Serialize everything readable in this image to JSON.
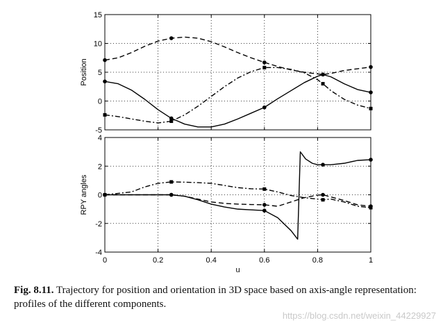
{
  "chart_data": [
    {
      "type": "line",
      "id": "position",
      "title": "",
      "xlabel": "",
      "ylabel": "Position",
      "xlim": [
        0,
        1
      ],
      "ylim": [
        -5,
        15
      ],
      "xticks": [
        0,
        0.2,
        0.4,
        0.6,
        0.8,
        1
      ],
      "yticks": [
        -5,
        0,
        5,
        10,
        15
      ],
      "grid": true,
      "series": [
        {
          "name": "solid",
          "style": "solid",
          "x": [
            0,
            0.05,
            0.1,
            0.15,
            0.2,
            0.25,
            0.3,
            0.35,
            0.4,
            0.45,
            0.5,
            0.55,
            0.6,
            0.65,
            0.7,
            0.75,
            0.8,
            0.82,
            0.85,
            0.9,
            0.95,
            1
          ],
          "y": [
            3.4,
            3.0,
            1.9,
            0.3,
            -1.5,
            -3.0,
            -4.0,
            -4.5,
            -4.5,
            -4.0,
            -3.1,
            -2.1,
            -1.1,
            0.4,
            1.8,
            3.2,
            4.3,
            4.6,
            4.2,
            3.0,
            2.0,
            1.5
          ],
          "markers": [
            {
              "x": 0,
              "y": 3.4,
              "shape": "circle"
            },
            {
              "x": 0.25,
              "y": -3.0,
              "shape": "circle"
            },
            {
              "x": 0.6,
              "y": -1.1,
              "shape": "circle"
            },
            {
              "x": 0.82,
              "y": 4.6,
              "shape": "circle"
            },
            {
              "x": 1,
              "y": 1.5,
              "shape": "circle"
            }
          ]
        },
        {
          "name": "dashed",
          "style": "dashed",
          "x": [
            0,
            0.05,
            0.1,
            0.15,
            0.2,
            0.25,
            0.3,
            0.35,
            0.4,
            0.45,
            0.5,
            0.55,
            0.6,
            0.65,
            0.7,
            0.75,
            0.8,
            0.82,
            0.85,
            0.9,
            0.95,
            1
          ],
          "y": [
            7.1,
            7.5,
            8.4,
            9.5,
            10.4,
            10.9,
            11.1,
            10.9,
            10.3,
            9.4,
            8.4,
            7.5,
            6.7,
            6.0,
            5.4,
            5.0,
            4.7,
            4.6,
            4.8,
            5.3,
            5.6,
            5.9
          ],
          "markers": [
            {
              "x": 0,
              "y": 7.1,
              "shape": "circle"
            },
            {
              "x": 0.25,
              "y": 10.9,
              "shape": "circle"
            },
            {
              "x": 0.6,
              "y": 6.7,
              "shape": "circle"
            },
            {
              "x": 0.82,
              "y": 4.6,
              "shape": "circle"
            },
            {
              "x": 1,
              "y": 5.9,
              "shape": "circle"
            }
          ]
        },
        {
          "name": "dash-dot",
          "style": "dashdot",
          "x": [
            0,
            0.05,
            0.1,
            0.15,
            0.2,
            0.25,
            0.3,
            0.35,
            0.4,
            0.45,
            0.5,
            0.55,
            0.6,
            0.65,
            0.7,
            0.75,
            0.8,
            0.82,
            0.85,
            0.9,
            0.95,
            1
          ],
          "y": [
            -2.4,
            -2.7,
            -3.1,
            -3.5,
            -3.8,
            -3.5,
            -2.4,
            -0.9,
            0.8,
            2.5,
            4.0,
            5.1,
            5.8,
            5.8,
            5.5,
            4.9,
            3.7,
            3.0,
            1.8,
            0.3,
            -0.7,
            -1.3
          ],
          "markers": [
            {
              "x": 0,
              "y": -2.4,
              "shape": "square"
            },
            {
              "x": 0.25,
              "y": -3.5,
              "shape": "square"
            },
            {
              "x": 0.6,
              "y": 5.8,
              "shape": "square"
            },
            {
              "x": 0.82,
              "y": 3.0,
              "shape": "square"
            },
            {
              "x": 1,
              "y": -1.3,
              "shape": "square"
            }
          ]
        }
      ]
    },
    {
      "type": "line",
      "id": "rpy",
      "title": "",
      "xlabel": "u",
      "ylabel": "RPY angles",
      "xlim": [
        0,
        1
      ],
      "ylim": [
        -4,
        4
      ],
      "xticks": [
        0,
        0.2,
        0.4,
        0.6,
        0.8,
        1
      ],
      "yticks": [
        -4,
        -2,
        0,
        2,
        4
      ],
      "grid": true,
      "series": [
        {
          "name": "solid",
          "style": "solid",
          "x": [
            0,
            0.1,
            0.2,
            0.25,
            0.3,
            0.35,
            0.4,
            0.45,
            0.5,
            0.55,
            0.6,
            0.65,
            0.7,
            0.725,
            0.735,
            0.755,
            0.78,
            0.8,
            0.82,
            0.85,
            0.9,
            0.95,
            1
          ],
          "y": [
            0,
            0,
            0,
            0,
            -0.1,
            -0.35,
            -0.65,
            -0.85,
            -1.0,
            -1.05,
            -1.1,
            -1.6,
            -2.5,
            -3.1,
            3.0,
            2.5,
            2.2,
            2.1,
            2.1,
            2.1,
            2.2,
            2.4,
            2.45
          ],
          "markers": [
            {
              "x": 0,
              "y": 0,
              "shape": "circle"
            },
            {
              "x": 0.25,
              "y": 0,
              "shape": "circle"
            },
            {
              "x": 0.6,
              "y": -1.1,
              "shape": "circle"
            },
            {
              "x": 0.82,
              "y": 2.1,
              "shape": "circle"
            },
            {
              "x": 1,
              "y": 2.45,
              "shape": "circle"
            }
          ]
        },
        {
          "name": "dashed",
          "style": "dashed",
          "x": [
            0,
            0.1,
            0.2,
            0.25,
            0.3,
            0.35,
            0.4,
            0.45,
            0.5,
            0.55,
            0.6,
            0.65,
            0.7,
            0.75,
            0.8,
            0.82,
            0.85,
            0.9,
            0.95,
            1
          ],
          "y": [
            0,
            0,
            0,
            0,
            -0.1,
            -0.3,
            -0.5,
            -0.6,
            -0.65,
            -0.68,
            -0.7,
            -0.8,
            -0.5,
            -0.2,
            -0.02,
            0,
            -0.15,
            -0.4,
            -0.7,
            -0.8
          ],
          "markers": [
            {
              "x": 0,
              "y": 0,
              "shape": "circle"
            },
            {
              "x": 0.25,
              "y": 0,
              "shape": "circle"
            },
            {
              "x": 0.6,
              "y": -0.7,
              "shape": "circle"
            },
            {
              "x": 0.82,
              "y": 0,
              "shape": "circle"
            },
            {
              "x": 1,
              "y": -0.8,
              "shape": "circle"
            }
          ]
        },
        {
          "name": "dash-dot",
          "style": "dashdot",
          "x": [
            0,
            0.1,
            0.15,
            0.2,
            0.25,
            0.3,
            0.35,
            0.4,
            0.45,
            0.5,
            0.55,
            0.6,
            0.65,
            0.7,
            0.75,
            0.8,
            0.82,
            0.85,
            0.9,
            0.95,
            1
          ],
          "y": [
            0,
            0.2,
            0.55,
            0.8,
            0.9,
            0.88,
            0.85,
            0.8,
            0.65,
            0.5,
            0.42,
            0.4,
            0.2,
            -0.05,
            -0.2,
            -0.3,
            -0.35,
            -0.3,
            -0.5,
            -0.8,
            -0.9
          ],
          "markers": [
            {
              "x": 0,
              "y": 0,
              "shape": "square"
            },
            {
              "x": 0.25,
              "y": 0.9,
              "shape": "square"
            },
            {
              "x": 0.6,
              "y": 0.4,
              "shape": "square"
            },
            {
              "x": 0.82,
              "y": -0.35,
              "shape": "square"
            },
            {
              "x": 1,
              "y": -0.9,
              "shape": "square"
            }
          ]
        }
      ]
    }
  ],
  "caption": {
    "label": "Fig. 8.11.",
    "text": "Trajectory for position and orientation in 3D space based on axis-angle representation: profiles of the different components."
  },
  "watermark": "https://blog.csdn.net/weixin_44229927"
}
